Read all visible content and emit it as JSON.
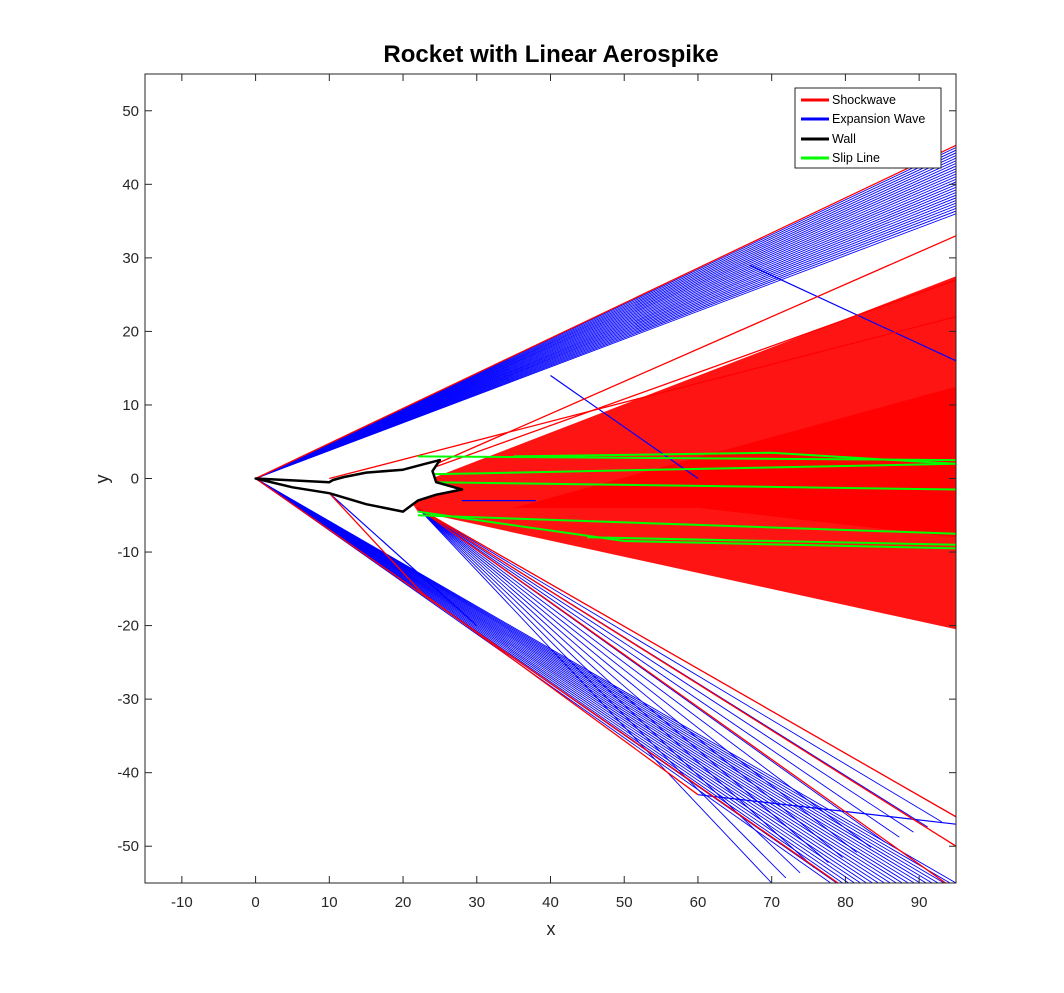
{
  "chart_data": {
    "type": "line",
    "title": "Rocket with Linear Aerospike",
    "xlabel": "x",
    "ylabel": "y",
    "xlim": [
      -15,
      95
    ],
    "ylim": [
      -55,
      55
    ],
    "xticks": [
      -10,
      0,
      10,
      20,
      30,
      40,
      50,
      60,
      70,
      80,
      90
    ],
    "yticks": [
      50,
      40,
      30,
      20,
      10,
      0,
      -10,
      -20,
      -30,
      -40,
      -50
    ],
    "legend_position": "top-right",
    "colors": {
      "shockwave": "#ff0000",
      "expansion": "#0000ff",
      "wall": "#000000",
      "slip": "#00ff00"
    },
    "series": [
      {
        "name": "Shockwave",
        "color": "#ff0000",
        "lines": [
          [
            [
              0,
              0
            ],
            [
              95,
              45.3
            ]
          ],
          [
            [
              0,
              0
            ],
            [
              79,
              -55
            ]
          ],
          [
            [
              22.5,
              -15.5
            ],
            [
              60,
              -43
            ]
          ],
          [
            [
              10,
              -2
            ],
            [
              22.5,
              -15.5
            ]
          ],
          [
            [
              20,
              0
            ],
            [
              95,
              33
            ]
          ],
          [
            [
              20,
              0
            ],
            [
              95,
              27
            ]
          ],
          [
            [
              10,
              0
            ],
            [
              95,
              22
            ]
          ],
          [
            [
              22,
              -4
            ],
            [
              95,
              -56
            ]
          ],
          [
            [
              22,
              -4
            ],
            [
              95,
              -50
            ]
          ],
          [
            [
              22,
              -4
            ],
            [
              95,
              -46
            ]
          ]
        ],
        "regions": [
          [
            [
              20,
              -1.5
            ],
            [
              95,
              27.5
            ],
            [
              95,
              -20.5
            ],
            [
              22,
              -4.5
            ]
          ],
          [
            [
              35,
              -4
            ],
            [
              95,
              12.5
            ],
            [
              95,
              -8
            ],
            [
              60,
              -4
            ]
          ]
        ]
      },
      {
        "name": "Expansion Wave",
        "color": "#0000ff",
        "fans": [
          {
            "origin": [
              0,
              0
            ],
            "from": [
              95,
              45
            ],
            "to": [
              95,
              36
            ],
            "count": 26
          },
          {
            "origin": [
              0,
              0
            ],
            "from": [
              78,
              -55
            ],
            "to": [
              95,
              -55
            ],
            "count": 22
          },
          {
            "origin": [
              22,
              -4
            ],
            "from": [
              70,
              -55
            ],
            "to": [
              95,
              -46
            ],
            "count": 14
          }
        ],
        "lines": [
          [
            [
              10,
              -2
            ],
            [
              30,
              -20
            ]
          ],
          [
            [
              60,
              -43
            ],
            [
              95,
              -47
            ]
          ],
          [
            [
              40,
              14
            ],
            [
              60,
              0
            ]
          ],
          [
            [
              67,
              29
            ],
            [
              95,
              16
            ]
          ],
          [
            [
              28,
              -3
            ],
            [
              38,
              -3
            ]
          ]
        ]
      },
      {
        "name": "Wall",
        "color": "#000000",
        "lines": [
          [
            [
              0,
              0
            ],
            [
              10,
              -0.5
            ],
            [
              10.5,
              -0.2
            ],
            [
              12,
              0.2
            ],
            [
              15,
              0.8
            ],
            [
              20,
              1.2
            ],
            [
              23,
              2.0
            ],
            [
              25,
              2.5
            ],
            [
              24,
              1.0
            ],
            [
              24.5,
              -0.5
            ],
            [
              28,
              -1.5
            ],
            [
              24.5,
              -2.2
            ],
            [
              22,
              -3.0
            ],
            [
              20,
              -4.5
            ],
            [
              15,
              -3.5
            ],
            [
              10,
              -2.0
            ],
            [
              5,
              -1.2
            ],
            [
              0,
              0
            ]
          ]
        ]
      },
      {
        "name": "Slip Line",
        "color": "#00ff00",
        "lines": [
          [
            [
              20,
              0.5
            ],
            [
              95,
              2
            ]
          ],
          [
            [
              22,
              3
            ],
            [
              95,
              2.5
            ]
          ],
          [
            [
              24,
              -0.5
            ],
            [
              95,
              -1.5
            ]
          ],
          [
            [
              35,
              3
            ],
            [
              70,
              3.5
            ],
            [
              95,
              2
            ]
          ],
          [
            [
              22,
              -4.5
            ],
            [
              50,
              -8.5
            ],
            [
              95,
              -9.5
            ]
          ],
          [
            [
              22,
              -5
            ],
            [
              95,
              -7.5
            ]
          ],
          [
            [
              45,
              -8
            ],
            [
              70,
              -8.5
            ],
            [
              95,
              -9
            ]
          ]
        ]
      }
    ]
  }
}
